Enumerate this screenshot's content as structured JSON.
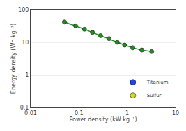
{
  "chart_data": {
    "type": "line",
    "xlabel": "Power density (kW kg⁻¹)",
    "ylabel": "Energy density (Wh kg⁻¹)",
    "x": [
      0.05,
      0.085,
      0.13,
      0.19,
      0.28,
      0.42,
      0.62,
      0.88,
      1.3,
      2.0,
      3.2
    ],
    "series": [
      {
        "color": "#228b22",
        "marker": "circle",
        "values": [
          42,
          32,
          25,
          20,
          16,
          13,
          10,
          8.2,
          6.8,
          5.8,
          5.2
        ]
      },
      {
        "name": "Titanium",
        "color": "#2244ee",
        "marker": "circle",
        "type": "scatter",
        "values": [
          null,
          null,
          null,
          null,
          null,
          null,
          null,
          null,
          null,
          null,
          null
        ]
      },
      {
        "name": "Sulfur",
        "color": "#ccdd22",
        "marker": "circle",
        "type": "scatter",
        "values": [
          null,
          null,
          null,
          null,
          null,
          null,
          null,
          null,
          null,
          null,
          null
        ]
      }
    ],
    "xlim": [
      0.01,
      10
    ],
    "ylim": [
      0.1,
      100
    ],
    "xticks": [
      0.01,
      0.1,
      1,
      10
    ],
    "yticks": [
      0.1,
      1,
      10,
      100
    ],
    "log": true,
    "grid": true,
    "legend": "lower right"
  }
}
